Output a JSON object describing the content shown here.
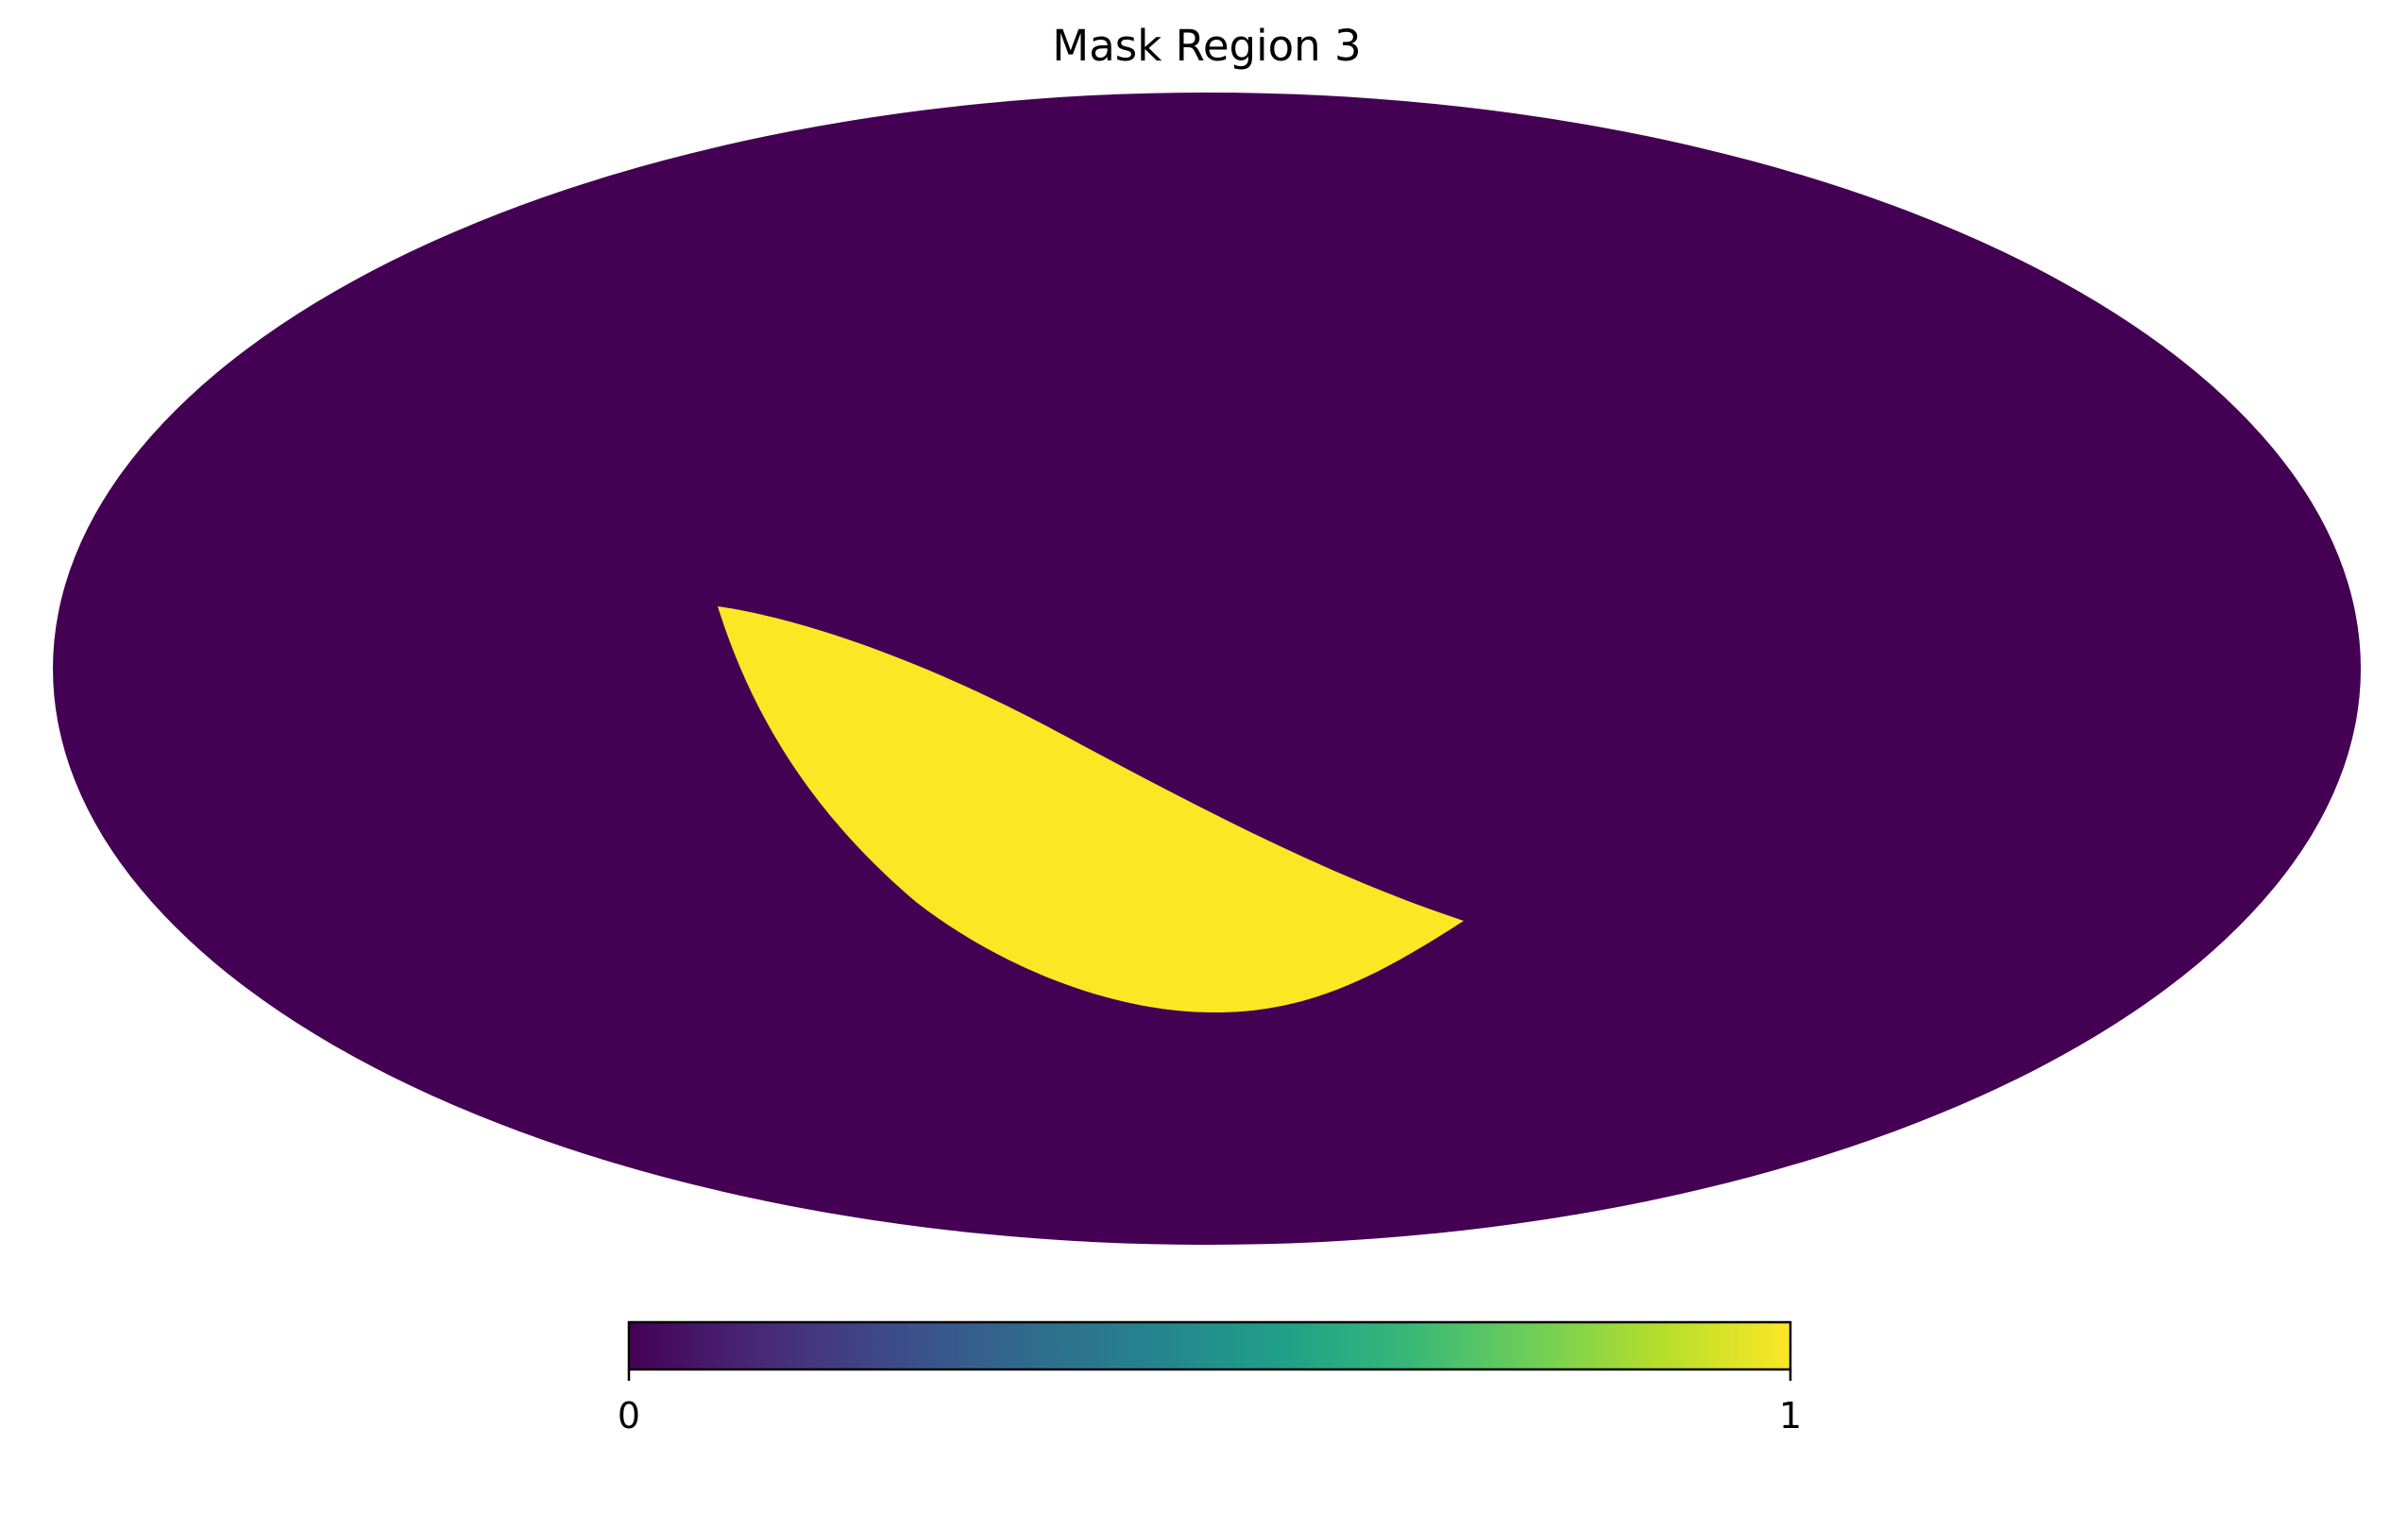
{
  "chart_data": {
    "type": "heatmap",
    "projection": "mollweide",
    "title": "Mask Region 3",
    "background_value": 0,
    "masked_region_value": 1,
    "colormap": "viridis",
    "colormap_stops": [
      "#440154",
      "#482878",
      "#3e4a89",
      "#31688e",
      "#26828e",
      "#1f9e89",
      "#35b779",
      "#6ece58",
      "#b5de2b",
      "#fde725"
    ],
    "background_color": "#440154",
    "region_color": "#fde725",
    "colorbar": {
      "orientation": "horizontal",
      "min": 0,
      "max": 1,
      "ticks": [
        {
          "value": 0,
          "label": "0"
        },
        {
          "value": 1,
          "label": "1"
        }
      ]
    },
    "grid": false,
    "legend": "none"
  }
}
